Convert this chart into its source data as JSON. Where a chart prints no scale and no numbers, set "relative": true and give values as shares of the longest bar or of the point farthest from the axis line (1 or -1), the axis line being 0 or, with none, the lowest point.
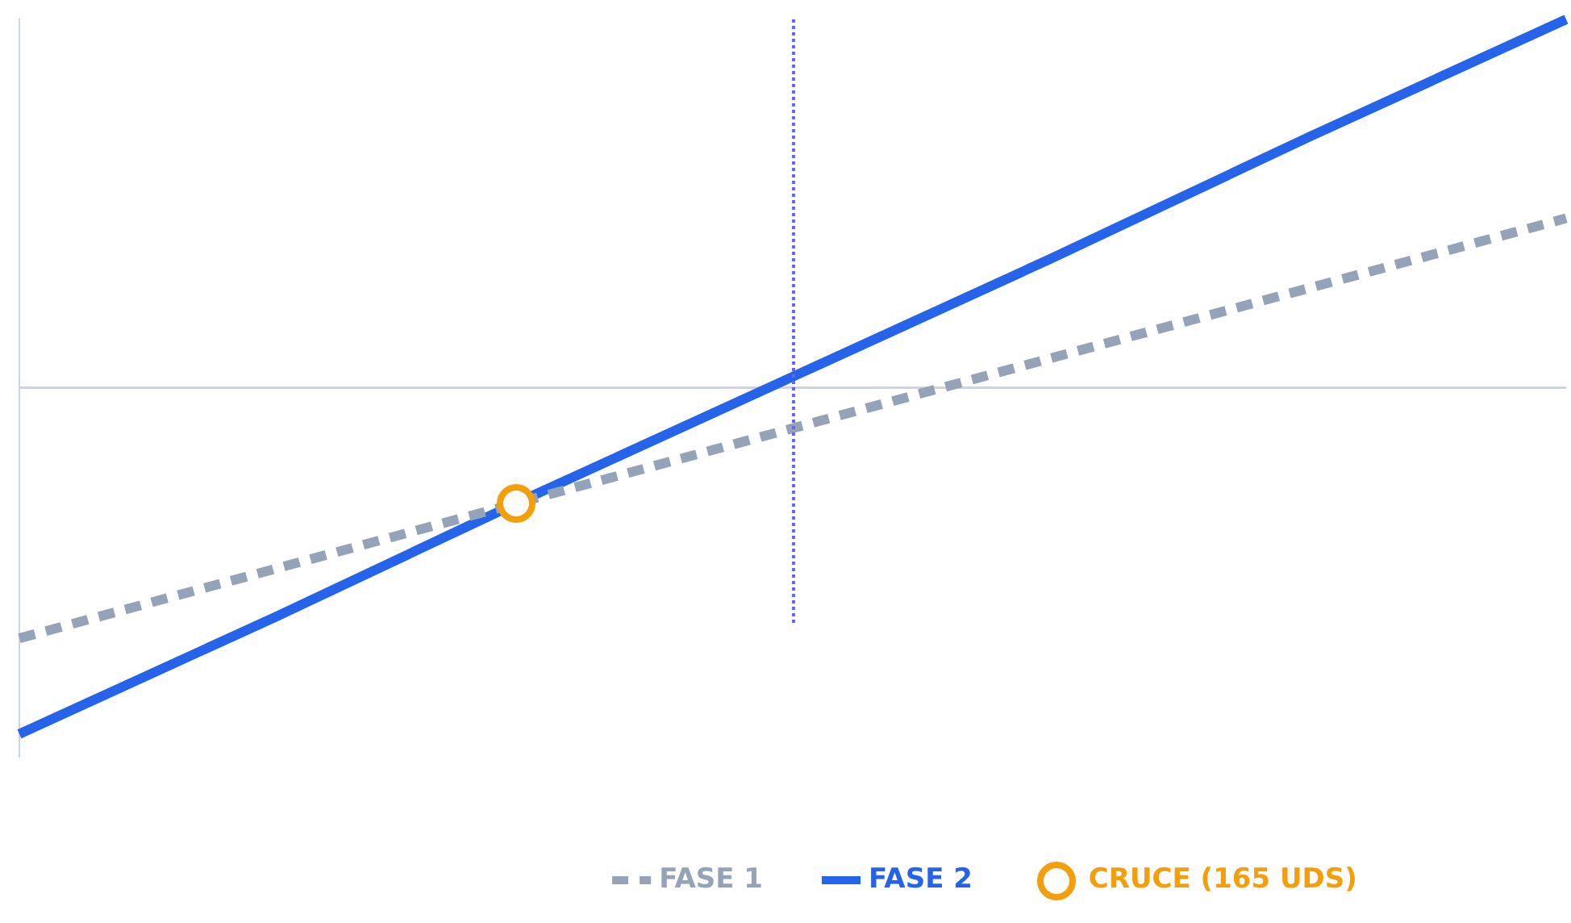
{
  "chart_data": {
    "type": "line",
    "relative": true,
    "categories": [
      null,
      null,
      null,
      null,
      null,
      null,
      null
    ],
    "grid": false,
    "legend": "bottom",
    "marker": "none",
    "series": [
      {
        "name": "FASE 1",
        "color": "#94a3b8",
        "values": [
          -0.68,
          -0.49,
          -0.3,
          -0.11,
          0.08,
          0.27,
          0.46
        ],
        "line_style": "dashed"
      },
      {
        "name": "FASE 2",
        "color": "#2563eb",
        "values": [
          -0.94,
          -0.62,
          -0.29,
          0.03,
          0.35,
          0.68,
          1
        ],
        "line_style": "solid"
      }
    ],
    "annotations": [
      "CRUCE (165 UDS)"
    ]
  }
}
